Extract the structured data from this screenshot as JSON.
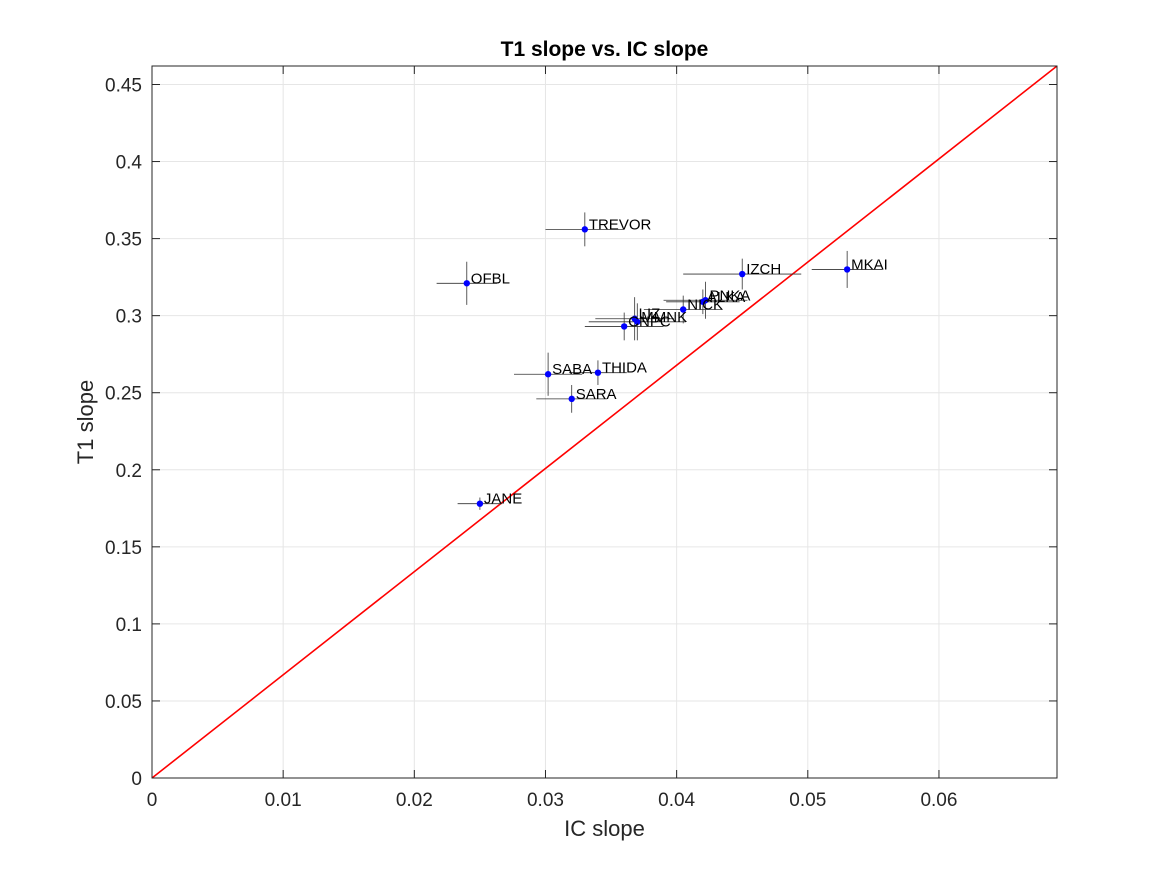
{
  "chart_data": {
    "type": "scatter",
    "title": "T1 slope vs. IC slope",
    "xlabel": "IC slope",
    "ylabel": "T1 slope",
    "xlim": [
      0,
      0.069
    ],
    "ylim": [
      0,
      0.462
    ],
    "xticks": [
      "0",
      "0.01",
      "0.02",
      "0.03",
      "0.04",
      "0.05",
      "0.06"
    ],
    "xtick_values": [
      0,
      0.01,
      0.02,
      0.03,
      0.04,
      0.05,
      0.06
    ],
    "yticks": [
      "0",
      "0.05",
      "0.1",
      "0.15",
      "0.2",
      "0.25",
      "0.3",
      "0.35",
      "0.4",
      "0.45"
    ],
    "ytick_values": [
      0,
      0.05,
      0.1,
      0.15,
      0.2,
      0.25,
      0.3,
      0.35,
      0.4,
      0.45
    ],
    "grid": true,
    "colors": {
      "points": "#0000ff",
      "identity_line": "#ff0000",
      "error_bars": "#333333",
      "grid": "#e6e6e6"
    },
    "identity_line": {
      "x": [
        0,
        0.069
      ],
      "y": [
        0,
        0.462
      ]
    },
    "points": [
      {
        "label": "TREVOR",
        "x": 0.033,
        "y": 0.356,
        "xerr": 0.003,
        "yerr": 0.011
      },
      {
        "label": "OFBL",
        "x": 0.024,
        "y": 0.321,
        "xerr": 0.0023,
        "yerr": 0.014
      },
      {
        "label": "IZCH",
        "x": 0.045,
        "y": 0.327,
        "xerr": 0.0045,
        "yerr": 0.01
      },
      {
        "label": "MKAI",
        "x": 0.053,
        "y": 0.33,
        "xerr": 0.0027,
        "yerr": 0.012
      },
      {
        "label": "PNKA",
        "x": 0.0422,
        "y": 0.31,
        "xerr": 0.0032,
        "yerr": 0.012
      },
      {
        "label": "ALKA",
        "x": 0.042,
        "y": 0.309,
        "xerr": 0.0028,
        "yerr": 0.008
      },
      {
        "label": "NICK",
        "x": 0.0405,
        "y": 0.304,
        "xerr": 0.003,
        "yerr": 0.009
      },
      {
        "label": "LIZ",
        "x": 0.0368,
        "y": 0.298,
        "xerr": 0.003,
        "yerr": 0.014
      },
      {
        "label": "MMNK",
        "x": 0.037,
        "y": 0.296,
        "xerr": 0.0037,
        "yerr": 0.012
      },
      {
        "label": "CNPC",
        "x": 0.036,
        "y": 0.293,
        "xerr": 0.003,
        "yerr": 0.009
      },
      {
        "label": "SABA",
        "x": 0.0302,
        "y": 0.262,
        "xerr": 0.0026,
        "yerr": 0.014
      },
      {
        "label": "THIDA",
        "x": 0.034,
        "y": 0.263,
        "xerr": 0.0022,
        "yerr": 0.008
      },
      {
        "label": "SARA",
        "x": 0.032,
        "y": 0.246,
        "xerr": 0.0027,
        "yerr": 0.009
      },
      {
        "label": "JANE",
        "x": 0.025,
        "y": 0.178,
        "xerr": 0.0017,
        "yerr": 0.004
      }
    ]
  }
}
